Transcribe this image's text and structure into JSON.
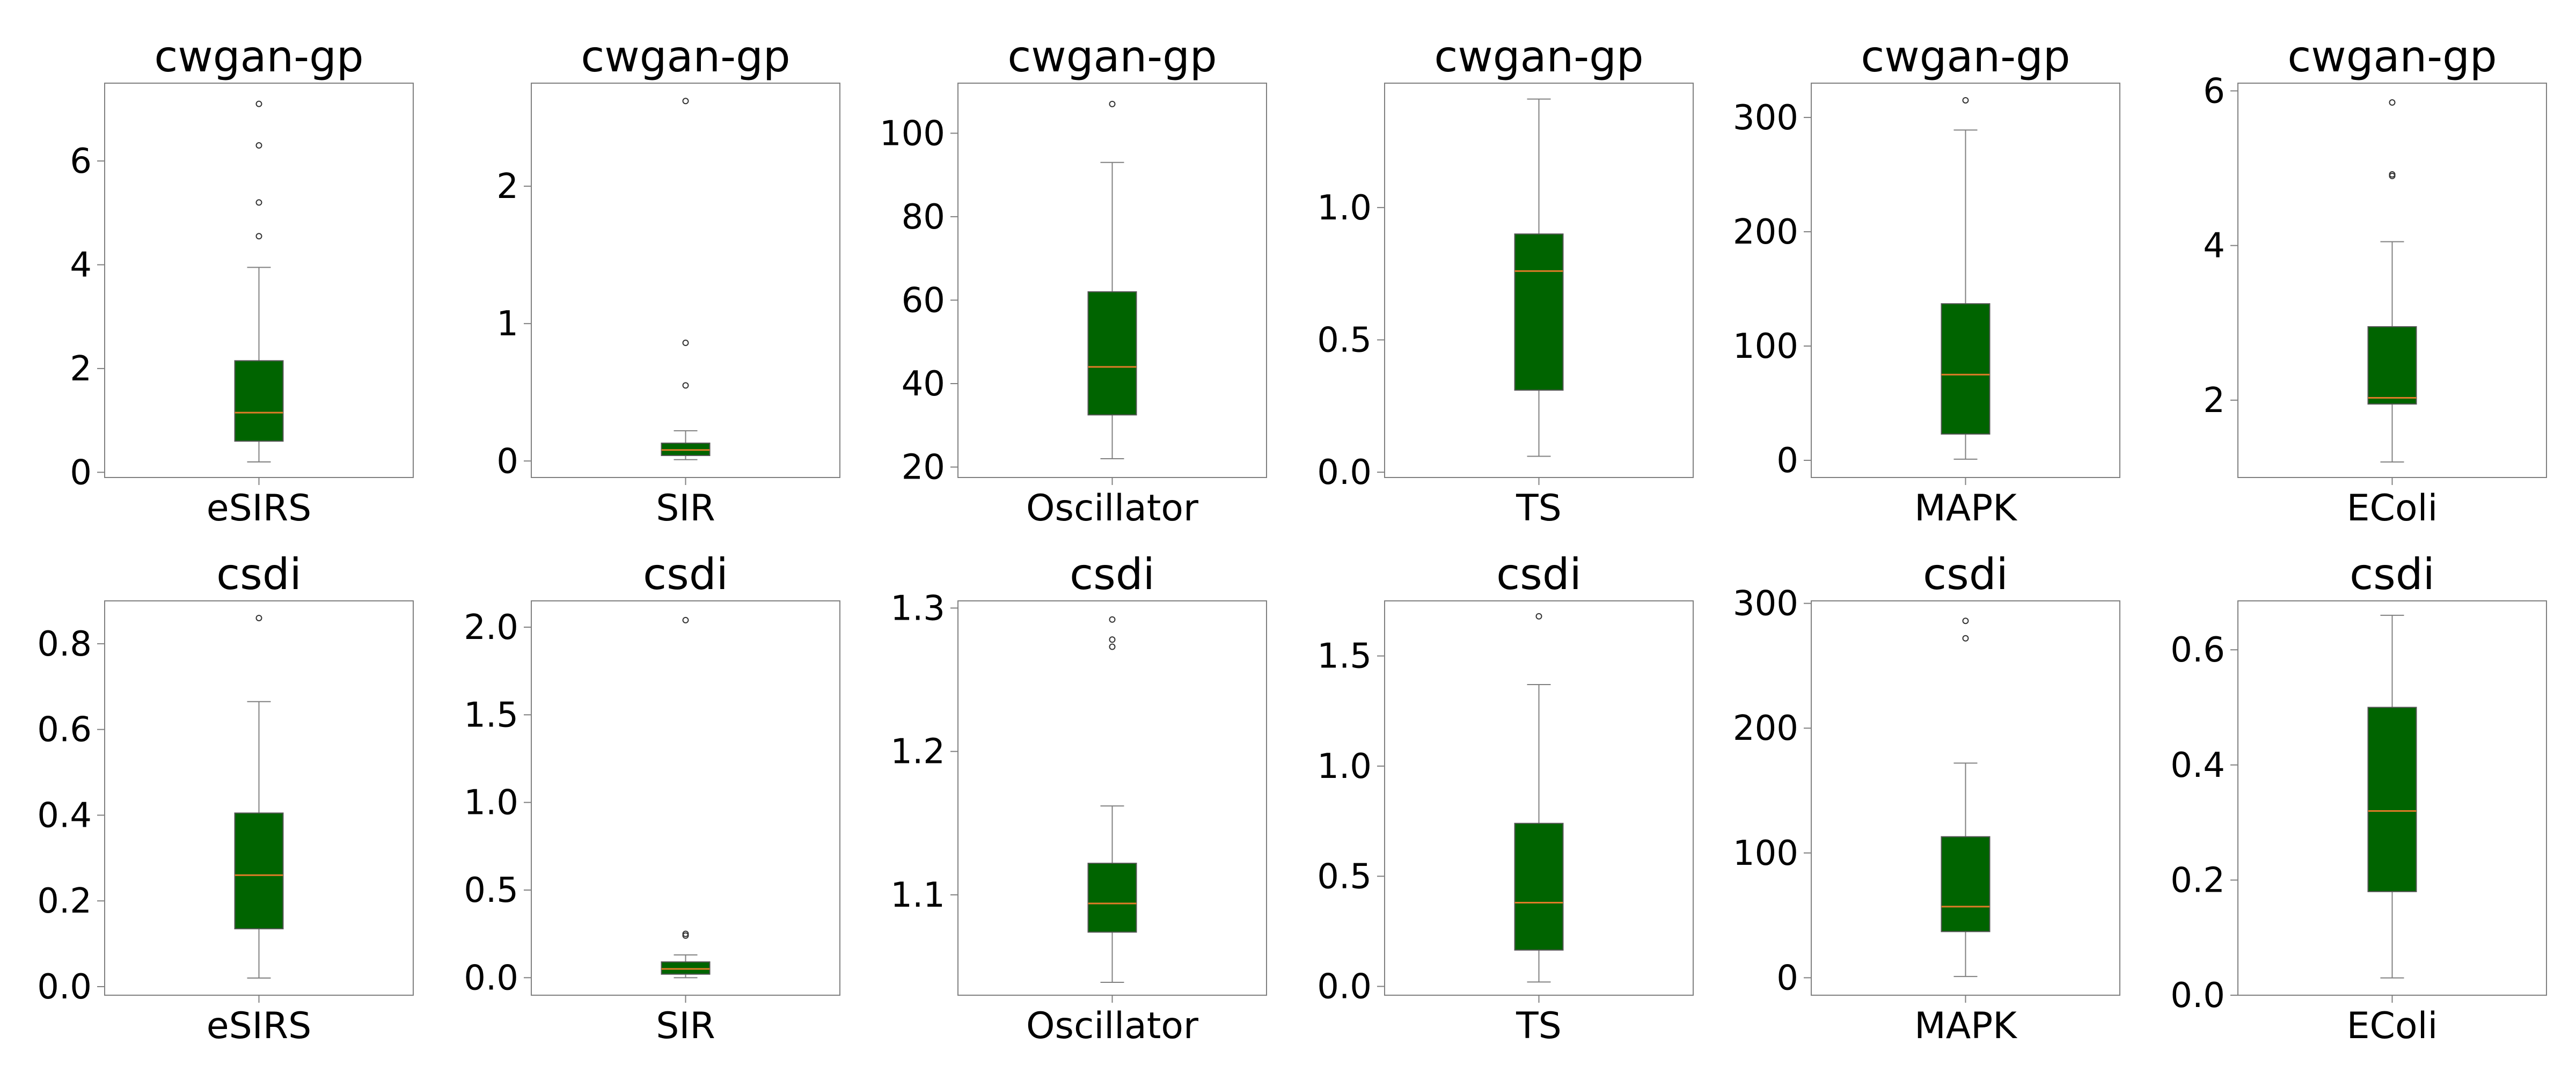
{
  "colors": {
    "box_fill": "#006400",
    "median": "#e07b28",
    "axis": "#808080"
  },
  "chart_data": [
    {
      "type": "box",
      "title": "cwgan-gp",
      "categories": [
        "eSIRS"
      ],
      "ylim": [
        -0.1,
        7.5
      ],
      "yticks": [
        0,
        2,
        4,
        6
      ],
      "yticklabels": [
        "0",
        "2",
        "4",
        "6"
      ],
      "box": {
        "whislo": 0.2,
        "q1": 0.6,
        "med": 1.15,
        "q3": 2.15,
        "whishi": 3.95,
        "fliers": [
          4.55,
          5.2,
          6.3,
          7.1
        ]
      }
    },
    {
      "type": "box",
      "title": "cwgan-gp",
      "categories": [
        "SIR"
      ],
      "ylim": [
        -0.12,
        2.75
      ],
      "yticks": [
        0,
        1,
        2
      ],
      "yticklabels": [
        "0",
        "1",
        "2"
      ],
      "box": {
        "whislo": 0.01,
        "q1": 0.04,
        "med": 0.08,
        "q3": 0.13,
        "whishi": 0.22,
        "fliers": [
          0.55,
          0.86,
          2.62
        ]
      }
    },
    {
      "type": "box",
      "title": "cwgan-gp",
      "categories": [
        "Oscillator"
      ],
      "ylim": [
        17.5,
        112
      ],
      "yticks": [
        20,
        40,
        60,
        80,
        100
      ],
      "yticklabels": [
        "20",
        "40",
        "60",
        "80",
        "100"
      ],
      "box": {
        "whislo": 22,
        "q1": 32.5,
        "med": 44,
        "q3": 62,
        "whishi": 93,
        "fliers": [
          107
        ]
      }
    },
    {
      "type": "box",
      "title": "cwgan-gp",
      "categories": [
        "TS"
      ],
      "ylim": [
        -0.02,
        1.47
      ],
      "yticks": [
        0,
        0.5,
        1
      ],
      "yticklabels": [
        "0.0",
        "0.5",
        "1.0"
      ],
      "box": {
        "whislo": 0.06,
        "q1": 0.31,
        "med": 0.76,
        "q3": 0.9,
        "whishi": 1.41,
        "fliers": []
      }
    },
    {
      "type": "box",
      "title": "cwgan-gp",
      "categories": [
        "MAPK"
      ],
      "ylim": [
        -15,
        330
      ],
      "yticks": [
        0,
        100,
        200,
        300
      ],
      "yticklabels": [
        "0",
        "100",
        "200",
        "300"
      ],
      "box": {
        "whislo": 1,
        "q1": 23,
        "med": 75,
        "q3": 137,
        "whishi": 289,
        "fliers": [
          315
        ]
      }
    },
    {
      "type": "box",
      "title": "cwgan-gp",
      "categories": [
        "EColi"
      ],
      "ylim": [
        1.0,
        6.1
      ],
      "yticks": [
        2,
        4,
        6
      ],
      "yticklabels": [
        "2",
        "4",
        "6"
      ],
      "box": {
        "whislo": 1.2,
        "q1": 1.95,
        "med": 2.03,
        "q3": 2.95,
        "whishi": 4.05,
        "fliers": [
          4.9,
          4.92,
          5.85
        ]
      }
    },
    {
      "type": "box",
      "title": "csdi",
      "categories": [
        "eSIRS"
      ],
      "ylim": [
        -0.02,
        0.9
      ],
      "yticks": [
        0,
        0.2,
        0.4,
        0.6,
        0.8
      ],
      "yticklabels": [
        "0.0",
        "0.2",
        "0.4",
        "0.6",
        "0.8"
      ],
      "box": {
        "whislo": 0.02,
        "q1": 0.135,
        "med": 0.26,
        "q3": 0.405,
        "whishi": 0.665,
        "fliers": [
          0.86
        ]
      }
    },
    {
      "type": "box",
      "title": "csdi",
      "categories": [
        "SIR"
      ],
      "ylim": [
        -0.1,
        2.15
      ],
      "yticks": [
        0,
        0.5,
        1,
        1.5,
        2
      ],
      "yticklabels": [
        "0.0",
        "0.5",
        "1.0",
        "1.5",
        "2.0"
      ],
      "box": {
        "whislo": 0.0,
        "q1": 0.02,
        "med": 0.05,
        "q3": 0.09,
        "whishi": 0.13,
        "fliers": [
          0.24,
          0.25,
          2.04
        ]
      }
    },
    {
      "type": "box",
      "title": "csdi",
      "categories": [
        "Oscillator"
      ],
      "ylim": [
        1.03,
        1.305
      ],
      "yticks": [
        1.1,
        1.2,
        1.3
      ],
      "yticklabels": [
        "1.1",
        "1.2",
        "1.3"
      ],
      "box": {
        "whislo": 1.039,
        "q1": 1.074,
        "med": 1.094,
        "q3": 1.122,
        "whishi": 1.162,
        "fliers": [
          1.273,
          1.278,
          1.292
        ]
      }
    },
    {
      "type": "box",
      "title": "csdi",
      "categories": [
        "TS"
      ],
      "ylim": [
        -0.04,
        1.75
      ],
      "yticks": [
        0,
        0.5,
        1,
        1.5
      ],
      "yticklabels": [
        "0.0",
        "0.5",
        "1.0",
        "1.5"
      ],
      "box": {
        "whislo": 0.02,
        "q1": 0.165,
        "med": 0.38,
        "q3": 0.74,
        "whishi": 1.37,
        "fliers": [
          1.68
        ]
      }
    },
    {
      "type": "box",
      "title": "csdi",
      "categories": [
        "MAPK"
      ],
      "ylim": [
        -14,
        302
      ],
      "yticks": [
        0,
        100,
        200,
        300
      ],
      "yticklabels": [
        "0",
        "100",
        "200",
        "300"
      ],
      "box": {
        "whislo": 1,
        "q1": 37,
        "med": 57,
        "q3": 113,
        "whishi": 172,
        "fliers": [
          272,
          286
        ]
      }
    },
    {
      "type": "box",
      "title": "csdi",
      "categories": [
        "EColi"
      ],
      "ylim": [
        0.0,
        0.685
      ],
      "yticks": [
        0,
        0.2,
        0.4,
        0.6
      ],
      "yticklabels": [
        "0.0",
        "0.2",
        "0.4",
        "0.6"
      ],
      "box": {
        "whislo": 0.03,
        "q1": 0.18,
        "med": 0.32,
        "q3": 0.5,
        "whishi": 0.66,
        "fliers": []
      }
    }
  ]
}
